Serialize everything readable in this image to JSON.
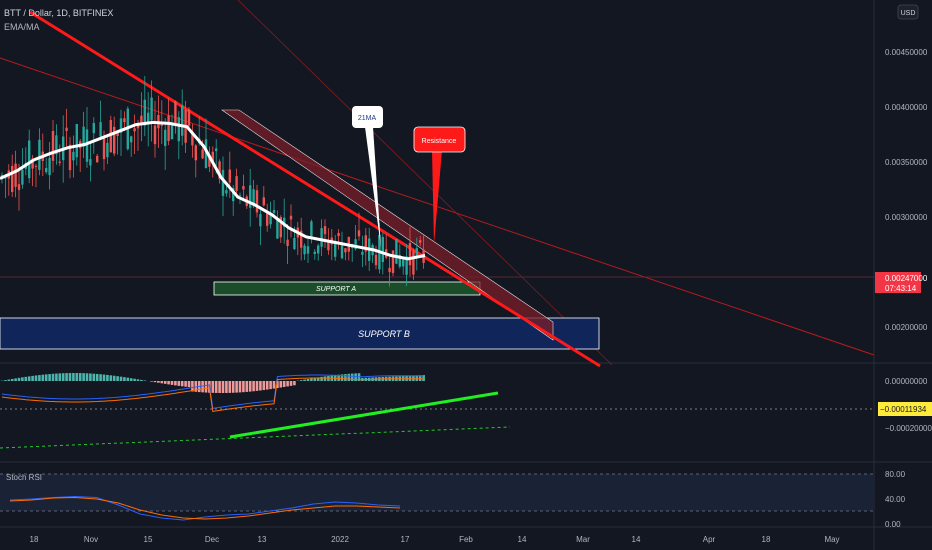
{
  "header": {
    "symbol_line": "BTT / Dollar, 1D, BITFINEX",
    "indicator_line": "EMA/MA",
    "currency_button": "USD"
  },
  "colors": {
    "background": "#131722",
    "grid": "#1e2230",
    "up_candle": "#26a69a",
    "down_candle": "#ef5350",
    "ema_line": "#ffffff",
    "trend_line": "#ff0000",
    "support_a": "#1b5e20",
    "support_b": "#0d2a6b",
    "macd_line": "#2962ff",
    "signal_line": "#ff6d00",
    "stoch_k": "#2962ff",
    "stoch_d": "#ff6d00",
    "last_price_bg": "#f23645",
    "macd_value_bg": "#ffeb3b",
    "green_trend": "#2aff2a"
  },
  "annotations": {
    "ema_callout": "21MA",
    "resistance_callout": "Resistance",
    "support_a": "SUPPORT A",
    "support_b": "SUPPORT B"
  },
  "price_axis": {
    "ticks": [
      "0.00450000",
      "0.00400000",
      "0.00350000",
      "0.00300000",
      "0.00200000"
    ],
    "last_price": "0.00247000",
    "countdown": "07:43:14"
  },
  "macd_axis": {
    "ticks": [
      "0.00000000",
      "−0.00020000"
    ],
    "current_value": "−0.00011934"
  },
  "stoch": {
    "label": "Stoch RSI",
    "ticks": [
      "80.00",
      "40.00",
      "0.00"
    ]
  },
  "time_axis": {
    "labels": [
      "18",
      "Nov",
      "15",
      "Dec",
      "13",
      "2022",
      "17",
      "Feb",
      "14",
      "Mar",
      "14",
      "Apr",
      "18",
      "May"
    ]
  },
  "chart_data": {
    "type": "candlestick",
    "title": "BTT / Dollar, 1D, BITFINEX",
    "y_range_main": [
      0.0016,
      0.0049
    ],
    "series": [
      {
        "name": "EMA/MA",
        "values": [
          0.00335,
          0.00342,
          0.00352,
          0.00358,
          0.00363,
          0.00366,
          0.00372,
          0.00378,
          0.00384,
          0.00386,
          0.00385,
          0.00382,
          0.00364,
          0.00336,
          0.00318,
          0.00311,
          0.00302,
          0.0029,
          0.00282,
          0.00279,
          0.00276,
          0.00273,
          0.0027,
          0.00265,
          0.00262,
          0.00265
        ]
      }
    ],
    "levels": {
      "last_price": 0.00247,
      "support_a_range": [
        0.00226,
        0.00238
      ],
      "support_b_range": [
        0.0017,
        0.00208
      ]
    },
    "macd": {
      "current": -0.00011934,
      "y_range": [
        -0.00032,
        5e-05
      ]
    },
    "stoch_rsi": {
      "y_range": [
        0,
        100
      ],
      "bands": [
        20,
        80
      ],
      "k": [
        48,
        50,
        53,
        55,
        53,
        38,
        20,
        12,
        8,
        14,
        18,
        20,
        26,
        32,
        40,
        44,
        42,
        38,
        36
      ],
      "d": [
        46,
        48,
        52,
        53,
        50,
        42,
        28,
        18,
        12,
        10,
        12,
        16,
        22,
        28,
        32,
        36,
        36,
        34,
        32
      ]
    }
  }
}
